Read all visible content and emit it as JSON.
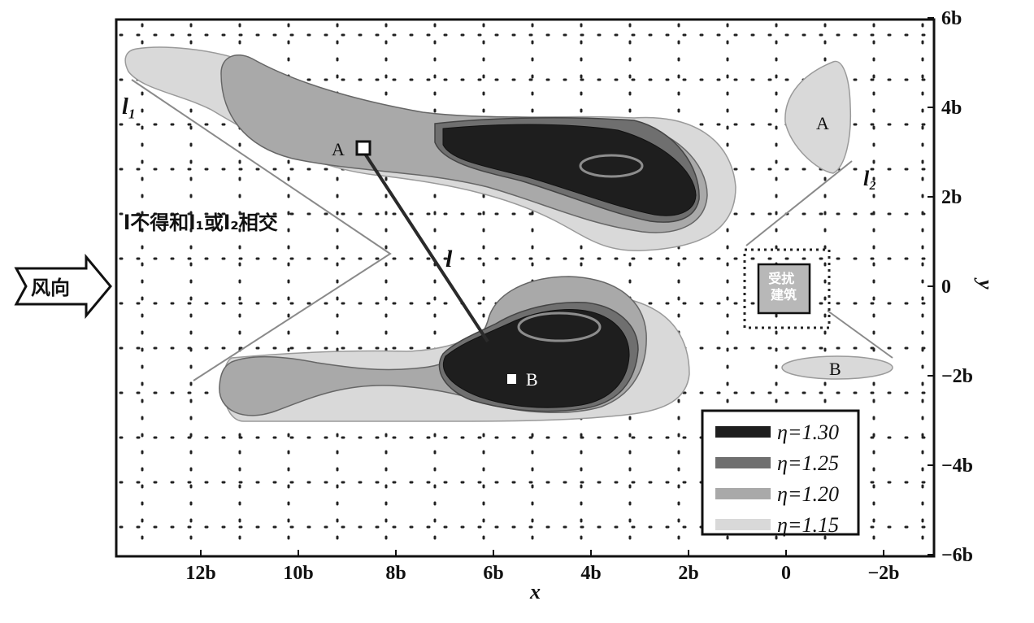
{
  "x_axis": {
    "title": "x",
    "ticks": [
      {
        "label": "12b",
        "value": 12
      },
      {
        "label": "10b",
        "value": 10
      },
      {
        "label": "8b",
        "value": 8
      },
      {
        "label": "6b",
        "value": 6
      },
      {
        "label": "4b",
        "value": 4
      },
      {
        "label": "2b",
        "value": 2
      },
      {
        "label": "0",
        "value": 0
      },
      {
        "label": "−2b",
        "value": -2
      }
    ]
  },
  "y_axis": {
    "title": "y",
    "ticks": [
      {
        "label": "6b",
        "value": 6
      },
      {
        "label": "4b",
        "value": 4
      },
      {
        "label": "2b",
        "value": 2
      },
      {
        "label": "0",
        "value": 0
      },
      {
        "label": "−2b",
        "value": -2
      },
      {
        "label": "−4b",
        "value": -4
      },
      {
        "label": "−6b",
        "value": -6
      }
    ]
  },
  "wind_direction": "风向",
  "constraint_text": "l不得和l₁或l₂相交",
  "line_labels": {
    "l": "l",
    "l1": "l₁",
    "l2": "l₂"
  },
  "building_labels": {
    "A": "A",
    "B": "B"
  },
  "region_labels": {
    "A": "A",
    "B": "B"
  },
  "disturbed_building": "受扰建筑",
  "legend": [
    {
      "label": "η=1.30",
      "color": "#1e1e1e"
    },
    {
      "label": "η=1.25",
      "color": "#6f6f6f"
    },
    {
      "label": "η=1.20",
      "color": "#a9a9a9"
    },
    {
      "label": "η=1.15",
      "color": "#d9d9d9"
    }
  ]
}
